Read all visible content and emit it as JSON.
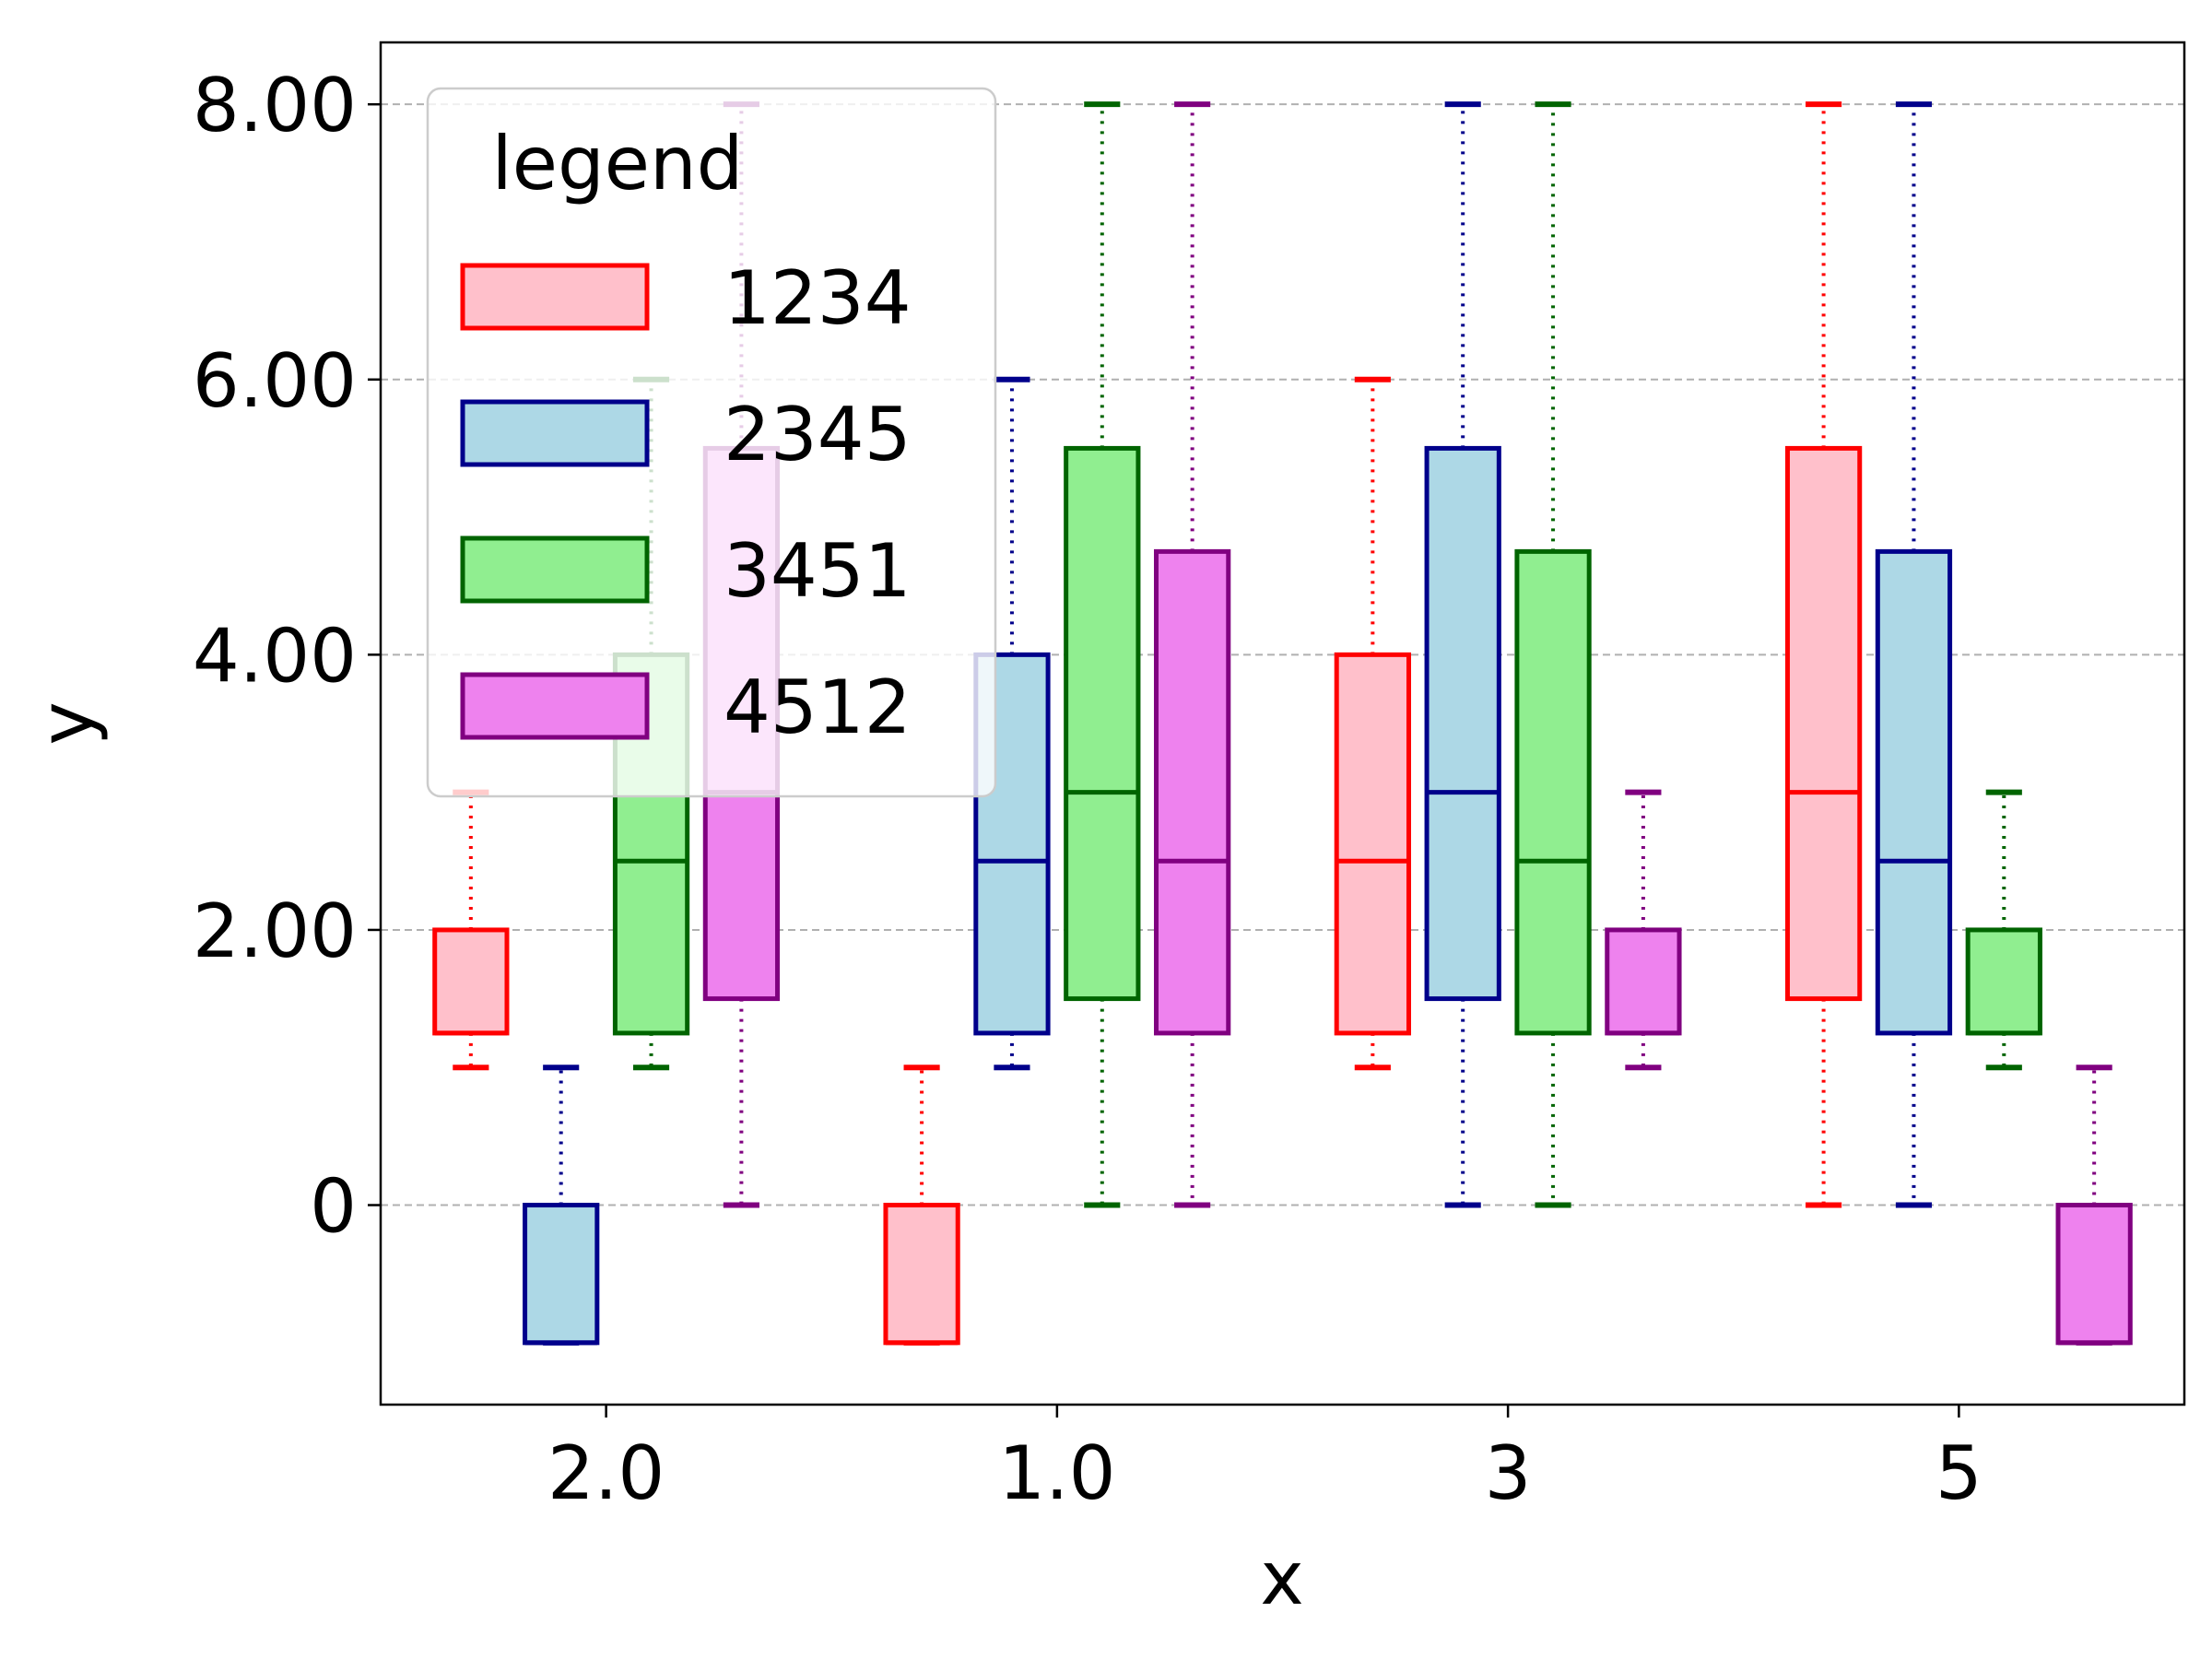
{
  "chart_data": {
    "type": "boxplot",
    "xlabel": "x",
    "ylabel": "y",
    "categories": [
      "2.0",
      "1.0",
      "3",
      "5"
    ],
    "y_ticks": [
      {
        "value": 0,
        "label": "0"
      },
      {
        "value": 2,
        "label": "2.00"
      },
      {
        "value": 4,
        "label": "4.00"
      },
      {
        "value": 6,
        "label": "6.00"
      },
      {
        "value": 8,
        "label": "8.00"
      }
    ],
    "ylim": [
      -1.45,
      8.45
    ],
    "grid": {
      "y": true,
      "x": false,
      "style": "dashed"
    },
    "legend": {
      "title": "legend",
      "placement": "top-left"
    },
    "series": [
      {
        "name": "1234",
        "fill": "#ffc0cb",
        "edge": "#ff0000",
        "boxes": [
          {
            "whisker_low": 1,
            "q1": 1.25,
            "median": 1.25,
            "q3": 2,
            "whisker_high": 3
          },
          {
            "whisker_low": -1,
            "q1": -1,
            "median": -1,
            "q3": 0,
            "whisker_high": 1
          },
          {
            "whisker_low": 1,
            "q1": 1.25,
            "median": 2.5,
            "q3": 4,
            "whisker_high": 6
          },
          {
            "whisker_low": 0,
            "q1": 1.5,
            "median": 3,
            "q3": 5.5,
            "whisker_high": 8
          }
        ]
      },
      {
        "name": "2345",
        "fill": "#add8e6",
        "edge": "#00008b",
        "boxes": [
          {
            "whisker_low": -1,
            "q1": -1,
            "median": -1,
            "q3": 0,
            "whisker_high": 1
          },
          {
            "whisker_low": 1,
            "q1": 1.25,
            "median": 2.5,
            "q3": 4,
            "whisker_high": 6
          },
          {
            "whisker_low": 0,
            "q1": 1.5,
            "median": 3,
            "q3": 5.5,
            "whisker_high": 8
          },
          {
            "whisker_low": 0,
            "q1": 1.25,
            "median": 2.5,
            "q3": 4.75,
            "whisker_high": 8
          }
        ]
      },
      {
        "name": "3451",
        "fill": "#90ee90",
        "edge": "#006400",
        "boxes": [
          {
            "whisker_low": 1,
            "q1": 1.25,
            "median": 2.5,
            "q3": 4,
            "whisker_high": 6
          },
          {
            "whisker_low": 0,
            "q1": 1.5,
            "median": 3,
            "q3": 5.5,
            "whisker_high": 8
          },
          {
            "whisker_low": 0,
            "q1": 1.25,
            "median": 2.5,
            "q3": 4.75,
            "whisker_high": 8
          },
          {
            "whisker_low": 1,
            "q1": 1.25,
            "median": 1.25,
            "q3": 2,
            "whisker_high": 3
          }
        ]
      },
      {
        "name": "4512",
        "fill": "#ee82ee",
        "edge": "#800080",
        "boxes": [
          {
            "whisker_low": 0,
            "q1": 1.5,
            "median": 3,
            "q3": 5.5,
            "whisker_high": 8
          },
          {
            "whisker_low": 0,
            "q1": 1.25,
            "median": 2.5,
            "q3": 4.75,
            "whisker_high": 8
          },
          {
            "whisker_low": 1,
            "q1": 1.25,
            "median": 1.25,
            "q3": 2,
            "whisker_high": 3
          },
          {
            "whisker_low": -1,
            "q1": -1,
            "median": -1,
            "q3": 0,
            "whisker_high": 1
          }
        ]
      }
    ]
  }
}
